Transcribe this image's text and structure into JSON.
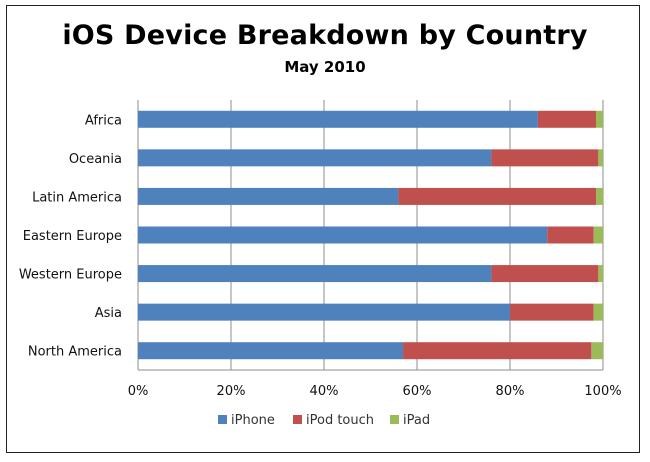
{
  "chart_data": {
    "type": "bar",
    "orientation": "horizontal",
    "stacked": true,
    "title": "iOS Device Breakdown by Country",
    "subtitle": "May 2010",
    "xlabel": "",
    "ylabel": "",
    "categories": [
      "Africa",
      "Oceania",
      "Latin America",
      "Eastern Europe",
      "Western Europe",
      "Asia",
      "North America"
    ],
    "series": [
      {
        "name": "iPhone",
        "color": "#4F81BD",
        "values": [
          86,
          76,
          56,
          88,
          76,
          80,
          57
        ]
      },
      {
        "name": "iPod touch",
        "color": "#C0504D",
        "values": [
          12.5,
          23,
          42.5,
          10,
          23,
          18,
          40.5
        ]
      },
      {
        "name": "iPad",
        "color": "#9BBB59",
        "values": [
          1.5,
          1,
          1.5,
          2,
          1,
          2,
          2.5
        ]
      }
    ],
    "xlim": [
      0,
      100
    ],
    "xticks": [
      "0%",
      "20%",
      "40%",
      "60%",
      "80%",
      "100%"
    ],
    "grid": true,
    "legend_position": "bottom"
  }
}
